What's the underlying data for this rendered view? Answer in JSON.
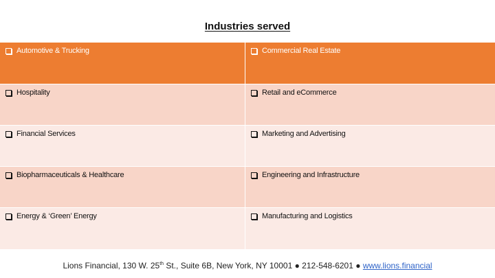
{
  "title": "Industries served",
  "table": {
    "rows": [
      [
        "Automotive  & Trucking",
        "Commercial Real Estate"
      ],
      [
        "Hospitality",
        "Retail and eCommerce"
      ],
      [
        "Financial Services",
        "Marketing and Advertising"
      ],
      [
        "Biopharmaceuticals & Healthcare",
        "Engineering and Infrastructure"
      ],
      [
        "Energy & ‘Green’ Energy",
        "Manufacturing and Logistics"
      ]
    ]
  },
  "footer": {
    "company": "Lions Financial, 130 W. 25",
    "ordinal": "th",
    "address_rest": " St., Suite 6B, New York, NY 10001 ● 212-548-6201 ● ",
    "website": "www.lions.financial"
  },
  "colors": {
    "header_row": "#ed7d31",
    "band_dark": "#f8d5c8",
    "band_light": "#fbeae5",
    "link": "#2e63c8"
  },
  "icons": {
    "bullet": "checkbox-bullet-icon"
  }
}
